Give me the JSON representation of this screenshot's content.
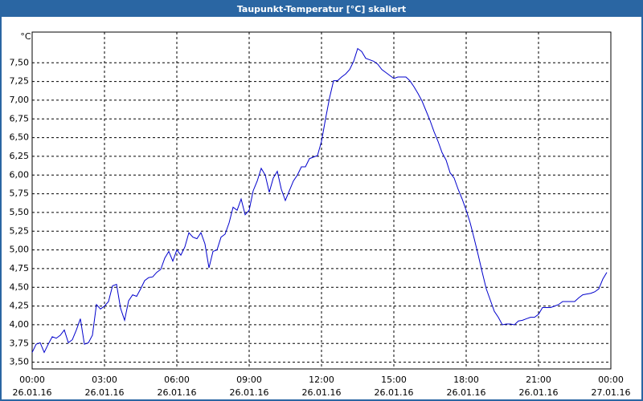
{
  "chart_data": {
    "type": "line",
    "title": "Taupunkt-Temperatur [°C] skaliert",
    "y_label": "°C",
    "x": [
      0,
      10,
      20,
      30,
      40,
      50,
      60,
      70,
      80,
      90,
      100,
      110,
      120,
      130,
      140,
      150,
      160,
      170,
      180,
      190,
      200,
      210,
      220,
      230,
      240,
      250,
      260,
      270,
      280,
      290,
      300,
      310,
      320,
      330,
      340,
      350,
      360,
      370,
      380,
      390,
      400,
      410,
      420,
      430,
      440,
      450,
      460,
      470,
      480,
      490,
      500,
      510,
      520,
      530,
      540,
      550,
      560,
      570,
      580,
      590,
      600,
      610,
      620,
      630,
      640,
      650,
      660,
      670,
      680,
      690,
      700,
      710,
      720,
      730,
      740,
      750,
      760,
      770,
      780,
      790,
      800,
      810,
      820,
      830,
      840,
      850,
      860,
      870,
      880,
      890,
      900,
      910,
      920,
      930,
      940,
      950,
      960,
      970,
      980,
      990,
      1000,
      1010,
      1020,
      1030,
      1040,
      1050,
      1060,
      1070,
      1080,
      1090,
      1100,
      1110,
      1120,
      1130,
      1140,
      1150,
      1160,
      1170,
      1180,
      1190,
      1200,
      1210,
      1220,
      1230,
      1240,
      1250,
      1260,
      1270,
      1280,
      1290,
      1300,
      1310,
      1320,
      1330,
      1340,
      1350,
      1360,
      1370,
      1380,
      1390,
      1400,
      1410,
      1420,
      1430
    ],
    "series": [
      {
        "color": "#0000cc",
        "values": [
          3.63,
          3.74,
          3.76,
          3.63,
          3.74,
          3.84,
          3.82,
          3.86,
          3.93,
          3.76,
          3.8,
          3.93,
          4.08,
          3.74,
          3.76,
          3.86,
          4.27,
          4.21,
          4.25,
          4.31,
          4.52,
          4.54,
          4.22,
          4.06,
          4.32,
          4.4,
          4.38,
          4.48,
          4.59,
          4.63,
          4.64,
          4.7,
          4.74,
          4.89,
          4.98,
          4.85,
          5.0,
          4.93,
          5.04,
          5.23,
          5.17,
          5.15,
          5.23,
          5.08,
          4.76,
          4.98,
          5.0,
          5.17,
          5.21,
          5.36,
          5.57,
          5.53,
          5.68,
          5.47,
          5.53,
          5.79,
          5.92,
          6.09,
          6.0,
          5.77,
          5.96,
          6.05,
          5.81,
          5.66,
          5.79,
          5.92,
          6.0,
          6.11,
          6.11,
          6.22,
          6.24,
          6.26,
          6.45,
          6.75,
          7.03,
          7.26,
          7.26,
          7.31,
          7.35,
          7.41,
          7.52,
          7.69,
          7.65,
          7.56,
          7.54,
          7.52,
          7.48,
          7.41,
          7.37,
          7.33,
          7.29,
          7.31,
          7.31,
          7.31,
          7.26,
          7.18,
          7.09,
          6.99,
          6.86,
          6.73,
          6.58,
          6.45,
          6.3,
          6.2,
          6.03,
          5.96,
          5.81,
          5.68,
          5.53,
          5.36,
          5.15,
          4.93,
          4.7,
          4.48,
          4.33,
          4.18,
          4.1,
          4.0,
          4.01,
          4.01,
          4.0,
          4.05,
          4.06,
          4.08,
          4.1,
          4.1,
          4.14,
          4.23,
          4.23,
          4.23,
          4.25,
          4.27,
          4.31,
          4.31,
          4.31,
          4.31,
          4.36,
          4.4,
          4.41,
          4.42,
          4.44,
          4.48,
          4.61,
          4.7
        ]
      }
    ],
    "xlim": [
      0,
      1440
    ],
    "xticks": [
      {
        "value": 0,
        "label": "00:00"
      },
      {
        "value": 180,
        "label": "03:00"
      },
      {
        "value": 360,
        "label": "06:00"
      },
      {
        "value": 540,
        "label": "09:00"
      },
      {
        "value": 720,
        "label": "12:00"
      },
      {
        "value": 900,
        "label": "15:00"
      },
      {
        "value": 1080,
        "label": "18:00"
      },
      {
        "value": 1260,
        "label": "21:00"
      },
      {
        "value": 1440,
        "label": "00:00"
      }
    ],
    "xtick_dates": [
      "26.01.16",
      "26.01.16",
      "26.01.16",
      "26.01.16",
      "26.01.16",
      "26.01.16",
      "26.01.16",
      "26.01.16",
      "27.01.16"
    ],
    "ylim": [
      3.41,
      7.91
    ],
    "yticks": [
      {
        "value": 3.5,
        "label": "3,50"
      },
      {
        "value": 3.75,
        "label": "3,75"
      },
      {
        "value": 4,
        "label": "4,00"
      },
      {
        "value": 4.25,
        "label": "4,25"
      },
      {
        "value": 4.5,
        "label": "4,50"
      },
      {
        "value": 4.75,
        "label": "4,75"
      },
      {
        "value": 5,
        "label": "5,00"
      },
      {
        "value": 5.25,
        "label": "5,25"
      },
      {
        "value": 5.5,
        "label": "5,50"
      },
      {
        "value": 5.75,
        "label": "5,75"
      },
      {
        "value": 6,
        "label": "6,00"
      },
      {
        "value": 6.25,
        "label": "6,25"
      },
      {
        "value": 6.5,
        "label": "6,50"
      },
      {
        "value": 6.75,
        "label": "6,75"
      },
      {
        "value": 7,
        "label": "7,00"
      },
      {
        "value": 7.25,
        "label": "7,25"
      },
      {
        "value": 7.5,
        "label": "7,50"
      }
    ],
    "grid": true
  }
}
